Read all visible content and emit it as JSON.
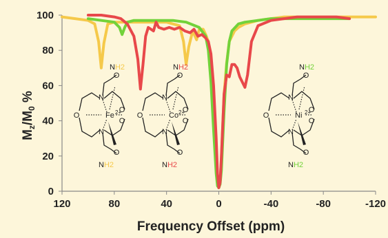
{
  "chart_data": {
    "type": "line",
    "title": "",
    "xlabel": "Frequency Offset (ppm)",
    "ylabel": "Mz/M0 %",
    "ylabel_parts": {
      "m": "M",
      "z": "z",
      "slash": "/",
      "o": "0",
      "pct": " %"
    },
    "xlim": [
      120,
      -120
    ],
    "ylim": [
      0,
      100
    ],
    "x_ticks": [
      120,
      80,
      40,
      0,
      -40,
      -80,
      -120
    ],
    "y_ticks": [
      0,
      20,
      40,
      60,
      80,
      100
    ],
    "grid": false,
    "legend": "none",
    "series": [
      {
        "color": "#f5c94a",
        "x": [
          120,
          110,
          100,
          95,
          92,
          90,
          88,
          85,
          80,
          75,
          70,
          60,
          50,
          40,
          35,
          30,
          27,
          25,
          23,
          20,
          17,
          15,
          12,
          10,
          8,
          6,
          4,
          2,
          1,
          0,
          -1,
          -2,
          -4,
          -6,
          -8,
          -12,
          -15,
          -20,
          -30,
          -40,
          -50,
          -60,
          -80,
          -100,
          -120
        ],
        "y": [
          99,
          98,
          97,
          95,
          85,
          70,
          84,
          95,
          96,
          96,
          96,
          96,
          96,
          96,
          95,
          94,
          85,
          72,
          82,
          91,
          86,
          92,
          92,
          89,
          85,
          76,
          55,
          25,
          5,
          2,
          5,
          20,
          55,
          73,
          85,
          91,
          93,
          95,
          97,
          98,
          99,
          99,
          99,
          99,
          99
        ]
      },
      {
        "color": "#72d23a",
        "x": [
          100,
          90,
          80,
          76,
          74,
          72,
          70,
          65,
          55,
          45,
          35,
          25,
          15,
          10,
          8,
          6,
          4,
          2,
          1,
          0,
          -1,
          -2,
          -4,
          -6,
          -8,
          -10,
          -15,
          -20,
          -30,
          -40,
          -60,
          -80,
          -100
        ],
        "y": [
          98,
          97,
          96,
          93,
          89,
          93,
          96,
          97,
          97,
          97,
          97,
          96,
          93,
          88,
          80,
          62,
          35,
          10,
          3,
          2,
          4,
          12,
          45,
          72,
          85,
          91,
          95,
          96,
          97,
          98,
          98,
          98,
          98
        ]
      },
      {
        "color": "#e8484a",
        "x": [
          100,
          90,
          80,
          75,
          70,
          65,
          62,
          60,
          58,
          56,
          54,
          50,
          48,
          46,
          42,
          38,
          34,
          30,
          26,
          22,
          19,
          16,
          13,
          10,
          8,
          6,
          4,
          2,
          1,
          0,
          -1,
          -2,
          -4,
          -6,
          -8,
          -10,
          -12,
          -14,
          -16,
          -18,
          -20,
          -22,
          -25,
          -30,
          -40,
          -50,
          -60,
          -70,
          -80,
          -90,
          -100
        ],
        "y": [
          100,
          100,
          99,
          98,
          95,
          88,
          75,
          58,
          72,
          88,
          93,
          91,
          96,
          93,
          92,
          93,
          92,
          93,
          91,
          90,
          92,
          88,
          89,
          87,
          85,
          78,
          60,
          30,
          10,
          2,
          5,
          20,
          55,
          66,
          65,
          72,
          72,
          70,
          65,
          62,
          59,
          66,
          85,
          94,
          97,
          98,
          99,
          99,
          99,
          99,
          98
        ]
      }
    ]
  },
  "molecules": [
    {
      "metal": "Fe",
      "charge": "2+",
      "amide_top": "NH2",
      "amide_bottom": "NH2",
      "nh2_color": "#f5c94a"
    },
    {
      "metal": "Co",
      "charge": "2+",
      "amide_top": "NH2",
      "amide_bottom": "NH2",
      "nh2_color": "#e8484a"
    },
    {
      "metal": "Ni",
      "charge": "2+",
      "amide_top": "NH2",
      "amide_bottom": "NH2",
      "nh2_color": "#72d23a"
    }
  ]
}
